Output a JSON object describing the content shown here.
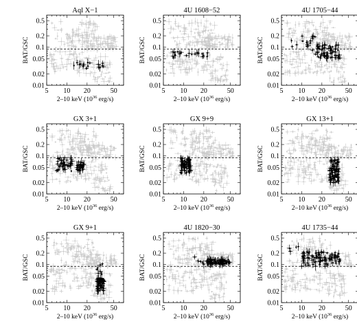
{
  "figure": {
    "xlabel": "2–10 keV (10",
    "xlabel_sup": "36",
    "xlabel_tail": " erg/s)",
    "ylabel": "BAT/GSC",
    "reference_level": 0.09,
    "colors": {
      "reference": "#c9c9c9",
      "source": "#000000"
    }
  },
  "chart_data": [
    {
      "type": "scatter",
      "title": "Aql X−1",
      "xscale": "log",
      "yscale": "log",
      "xlim": [
        5,
        70
      ],
      "ylim": [
        0.01,
        0.7
      ],
      "xticks": [
        5,
        10,
        20,
        50
      ],
      "yticks": [
        0.01,
        0.02,
        0.05,
        0.1,
        0.2,
        0.5
      ],
      "series": [
        {
          "clusters": [
            {
              "x": [
                12,
                35
              ],
              "y": [
                0.027,
                0.045
              ],
              "n": 18
            }
          ]
        }
      ]
    },
    {
      "type": "scatter",
      "title": "4U 1608−52",
      "xscale": "log",
      "yscale": "log",
      "xlim": [
        5,
        70
      ],
      "ylim": [
        0.01,
        0.7
      ],
      "xticks": [
        5,
        10,
        20,
        50
      ],
      "yticks": [
        0.01,
        0.02,
        0.05,
        0.1,
        0.2,
        0.5
      ],
      "series": [
        {
          "clusters": [
            {
              "x": [
                6.5,
                25
              ],
              "y": [
                0.052,
                0.08
              ],
              "n": 22
            }
          ]
        }
      ]
    },
    {
      "type": "scatter",
      "title": "4U 1705−44",
      "xscale": "log",
      "yscale": "log",
      "xlim": [
        5,
        70
      ],
      "ylim": [
        0.01,
        0.7
      ],
      "xticks": [
        5,
        10,
        20,
        50
      ],
      "yticks": [
        0.01,
        0.02,
        0.05,
        0.1,
        0.2,
        0.5
      ],
      "series": [
        {
          "clusters": [
            {
              "x": [
                7,
                16
              ],
              "y": [
                0.08,
                0.2
              ],
              "n": 16
            },
            {
              "x": [
                16,
                38
              ],
              "y": [
                0.05,
                0.12
              ],
              "n": 60
            }
          ]
        }
      ]
    },
    {
      "type": "scatter",
      "title": "GX 3+1",
      "xscale": "log",
      "yscale": "log",
      "xlim": [
        5,
        70
      ],
      "ylim": [
        0.01,
        0.7
      ],
      "xticks": [
        5,
        10,
        20,
        50
      ],
      "yticks": [
        0.01,
        0.02,
        0.05,
        0.1,
        0.2,
        0.5
      ],
      "series": [
        {
          "clusters": [
            {
              "x": [
                7,
                12
              ],
              "y": [
                0.04,
                0.09
              ],
              "n": 45
            },
            {
              "x": [
                14,
                18
              ],
              "y": [
                0.04,
                0.07
              ],
              "n": 30
            }
          ]
        }
      ]
    },
    {
      "type": "scatter",
      "title": "GX 9+9",
      "xscale": "log",
      "yscale": "log",
      "xlim": [
        5,
        70
      ],
      "ylim": [
        0.01,
        0.7
      ],
      "xticks": [
        5,
        10,
        20,
        50
      ],
      "yticks": [
        0.01,
        0.02,
        0.05,
        0.1,
        0.2,
        0.5
      ],
      "series": [
        {
          "clusters": [
            {
              "x": [
                9,
                13
              ],
              "y": [
                0.035,
                0.09
              ],
              "n": 75
            }
          ]
        }
      ]
    },
    {
      "type": "scatter",
      "title": "GX 13+1",
      "xscale": "log",
      "yscale": "log",
      "xlim": [
        5,
        70
      ],
      "ylim": [
        0.01,
        0.7
      ],
      "xticks": [
        5,
        10,
        20,
        50
      ],
      "yticks": [
        0.01,
        0.02,
        0.05,
        0.1,
        0.2,
        0.5
      ],
      "series": [
        {
          "clusters": [
            {
              "x": [
                26,
                36
              ],
              "y": [
                0.02,
                0.08
              ],
              "n": 80
            }
          ]
        }
      ]
    },
    {
      "type": "scatter",
      "title": "GX 9+1",
      "xscale": "log",
      "yscale": "log",
      "xlim": [
        5,
        70
      ],
      "ylim": [
        0.01,
        0.7
      ],
      "xticks": [
        5,
        10,
        20,
        50
      ],
      "yticks": [
        0.01,
        0.02,
        0.05,
        0.1,
        0.2,
        0.5
      ],
      "series": [
        {
          "clusters": [
            {
              "x": [
                28,
                36
              ],
              "y": [
                0.02,
                0.045
              ],
              "n": 70
            },
            {
              "x": [
                28,
                34
              ],
              "y": [
                0.05,
                0.12
              ],
              "n": 8
            }
          ]
        }
      ]
    },
    {
      "type": "scatter",
      "title": "4U 1820−30",
      "xscale": "log",
      "yscale": "log",
      "xlim": [
        5,
        70
      ],
      "ylim": [
        0.01,
        0.7
      ],
      "xticks": [
        5,
        10,
        20,
        50
      ],
      "yticks": [
        0.01,
        0.02,
        0.05,
        0.1,
        0.2,
        0.5
      ],
      "series": [
        {
          "clusters": [
            {
              "x": [
                22,
                50
              ],
              "y": [
                0.1,
                0.14
              ],
              "n": 80
            },
            {
              "x": [
                14,
                20
              ],
              "y": [
                0.1,
                0.17
              ],
              "n": 5
            }
          ]
        }
      ]
    },
    {
      "type": "scatter",
      "title": "4U 1735−44",
      "xscale": "log",
      "yscale": "log",
      "xlim": [
        5,
        70
      ],
      "ylim": [
        0.01,
        0.7
      ],
      "xticks": [
        5,
        10,
        20,
        50
      ],
      "yticks": [
        0.01,
        0.02,
        0.05,
        0.1,
        0.2,
        0.5
      ],
      "series": [
        {
          "clusters": [
            {
              "x": [
                10,
                38
              ],
              "y": [
                0.09,
                0.22
              ],
              "n": 90
            },
            {
              "x": [
                6.5,
                9
              ],
              "y": [
                0.2,
                0.3
              ],
              "n": 4
            }
          ]
        }
      ]
    }
  ]
}
